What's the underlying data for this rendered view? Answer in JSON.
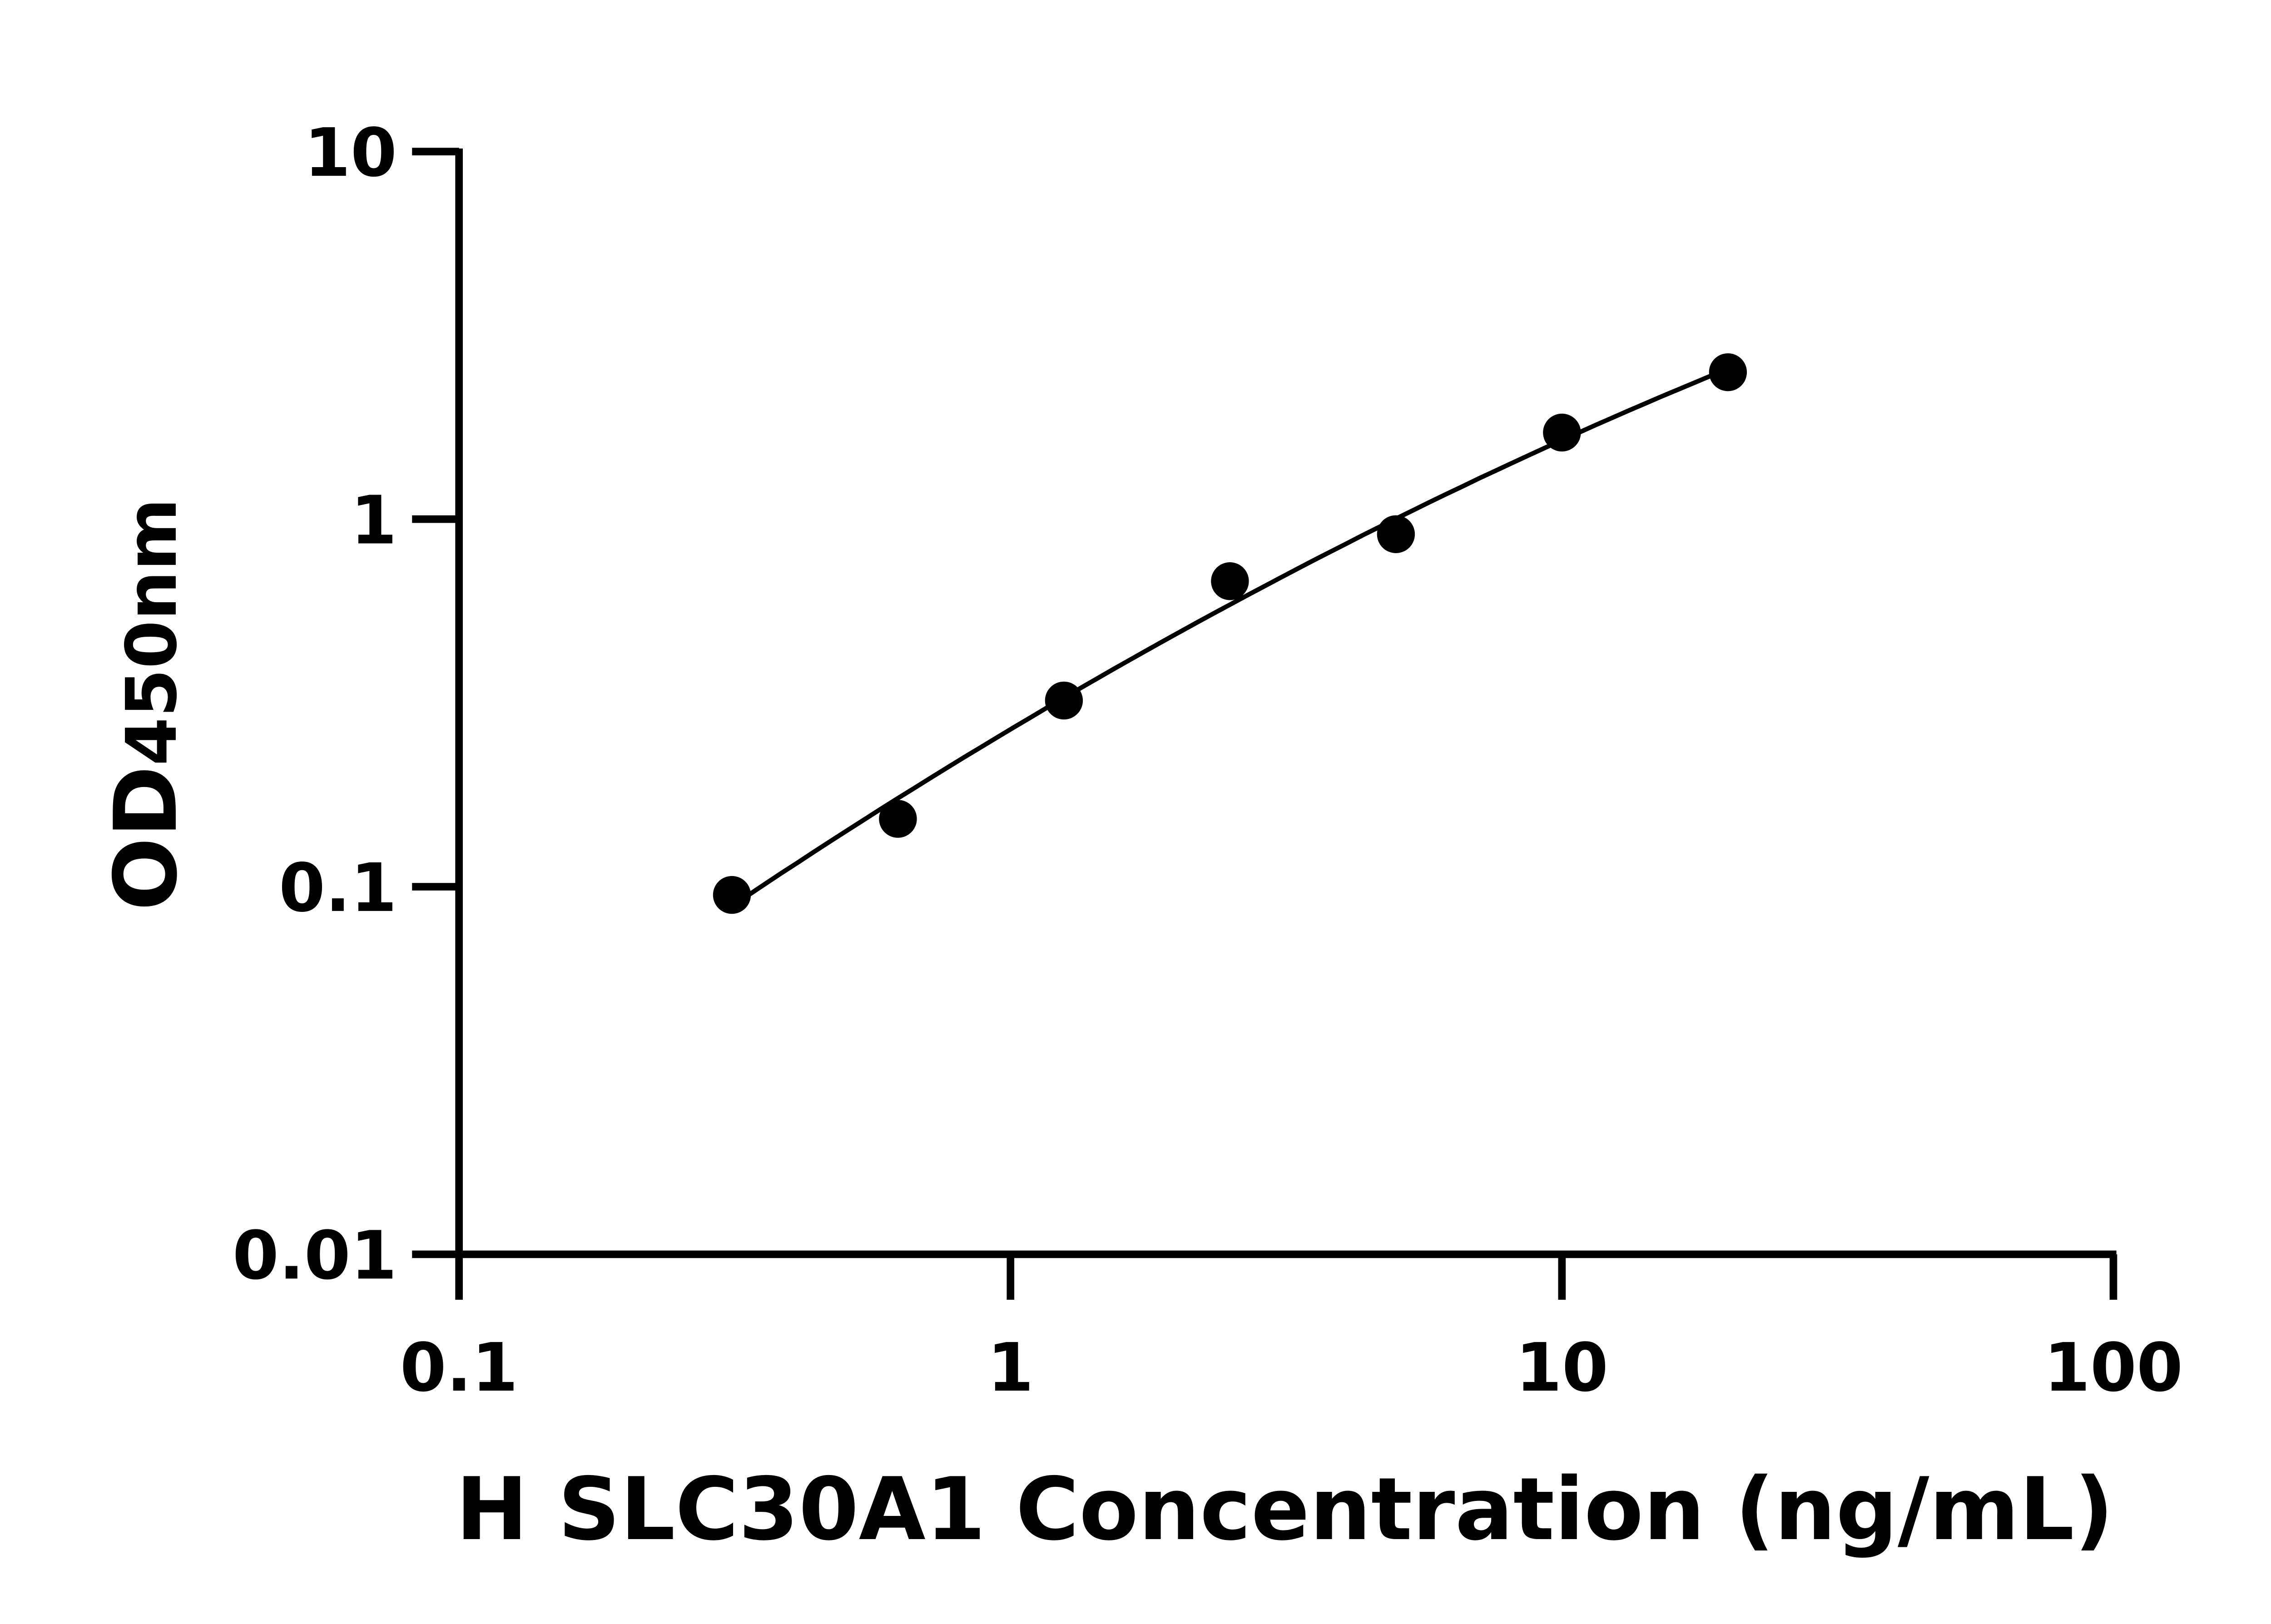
{
  "chart_data": {
    "type": "scatter",
    "title": "",
    "xlabel": "H SLC30A1 Concentration (ng/mL)",
    "ylabel_main": "OD",
    "ylabel_sub": "450nm",
    "x_scale": "log",
    "y_scale": "log",
    "xlim": [
      0.1,
      100
    ],
    "ylim": [
      0.01,
      10
    ],
    "x_ticks": [
      0.1,
      1,
      10,
      100
    ],
    "x_tick_labels": [
      "0.1",
      "1",
      "10",
      "100"
    ],
    "y_ticks": [
      0.01,
      0.1,
      1,
      10
    ],
    "y_tick_labels": [
      "0.01",
      "0.1",
      "1",
      "10"
    ],
    "grid": false,
    "legend": "none",
    "fit_line": true,
    "color": "#000000",
    "points": {
      "x": [
        0.3125,
        0.625,
        1.25,
        2.5,
        5,
        10,
        20
      ],
      "y": [
        0.095,
        0.153,
        0.321,
        0.678,
        0.91,
        1.72,
        2.51
      ]
    }
  }
}
